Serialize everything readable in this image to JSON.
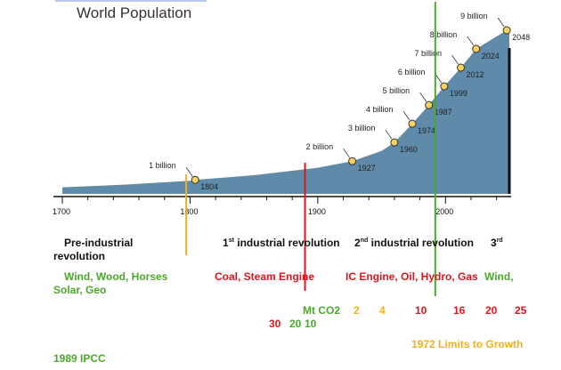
{
  "title": "World Population",
  "chart_data": {
    "type": "area",
    "x": [
      1700,
      1750,
      1800,
      1804,
      1850,
      1900,
      1927,
      1950,
      1960,
      1974,
      1987,
      1999,
      2012,
      2024,
      2048
    ],
    "y": [
      0.6,
      0.75,
      0.95,
      1,
      1.25,
      1.65,
      2,
      2.55,
      3,
      4,
      5,
      6,
      7,
      8,
      9
    ],
    "xlim": [
      1700,
      2050
    ],
    "xticks": [
      "1700",
      "1800",
      "1900",
      "2000"
    ],
    "fill_color": "#5f8aaa",
    "milestones": [
      {
        "label": "1 billion",
        "year": "1804",
        "x": 1804,
        "y": 1
      },
      {
        "label": "2 billion",
        "year": "1927",
        "x": 1927,
        "y": 2
      },
      {
        "label": "3 billion",
        "year": "1960",
        "x": 1960,
        "y": 3
      },
      {
        "label": "4 billion",
        "year": "1974",
        "x": 1974,
        "y": 4
      },
      {
        "label": "5 billion",
        "year": "1987",
        "x": 1987,
        "y": 5
      },
      {
        "label": "6 billion",
        "year": "1999",
        "x": 1999,
        "y": 6
      },
      {
        "label": "7 billion",
        "year": "2012",
        "x": 2012,
        "y": 7
      },
      {
        "label": "8 billion",
        "year": "2024",
        "x": 2024,
        "y": 8
      },
      {
        "label": "9 billion",
        "year": "2048",
        "x": 2048,
        "y": 9
      }
    ],
    "vlines": [
      {
        "year": 1797,
        "color": "#f0b020"
      },
      {
        "year": 1890,
        "color": "#e0141e"
      },
      {
        "year": 1992,
        "color": "#4aa82a"
      }
    ]
  },
  "eras": {
    "pre_line1": "Pre-industrial",
    "pre_line2": "revolution",
    "first_num": "1",
    "first_sup": "st",
    "first_rest": " industrial revolution",
    "second_num": "2",
    "second_sup": "nd",
    "second_rest": " industrial revolution",
    "third_num": "3",
    "third_sup": "rd"
  },
  "sources": {
    "pre_line1": "Wind, Wood, Horses",
    "pre_line2": "Solar, Geo",
    "first": "Coal, Steam Engine",
    "second": "IC Engine, Oil, Hydro, Gas",
    "third": "Wind,"
  },
  "co2": {
    "label": "Mt CO2",
    "v1": "2",
    "v2": "4",
    "v3": "10",
    "v4": "16",
    "v5": "20",
    "v6": "25",
    "row2_a": "30",
    "row2_b": "20",
    "row2_c": "10"
  },
  "notes": {
    "limits": "1972 Limits to Growth",
    "ipcc": "1989 IPCC"
  }
}
